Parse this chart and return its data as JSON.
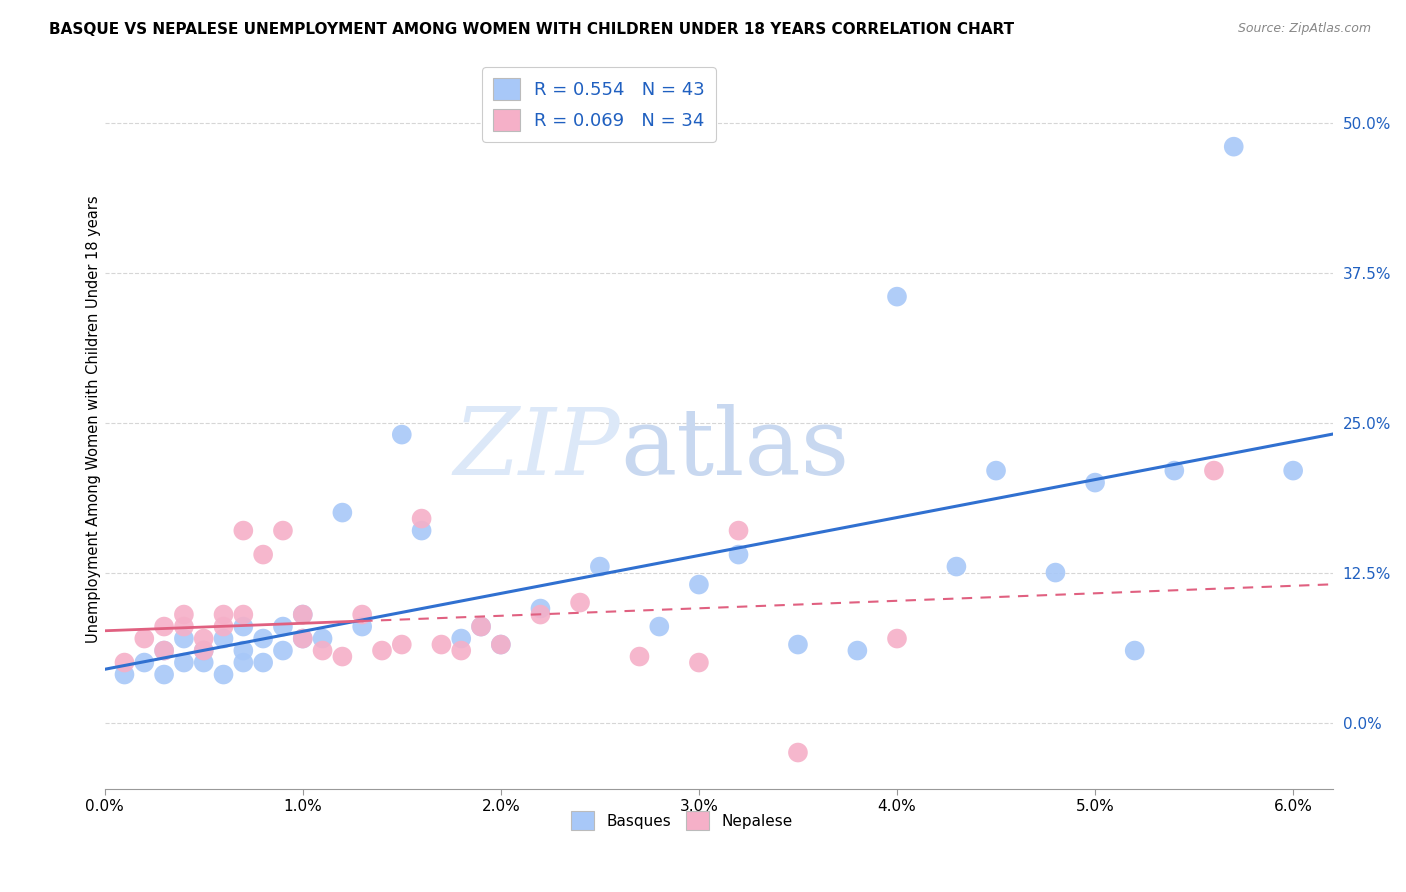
{
  "title": "BASQUE VS NEPALESE UNEMPLOYMENT AMONG WOMEN WITH CHILDREN UNDER 18 YEARS CORRELATION CHART",
  "source": "Source: ZipAtlas.com",
  "ylabel": "Unemployment Among Women with Children Under 18 years",
  "xlim": [
    0.0,
    0.062
  ],
  "ylim": [
    -0.055,
    0.56
  ],
  "xticks": [
    0.0,
    0.01,
    0.02,
    0.03,
    0.04,
    0.05,
    0.06
  ],
  "xticklabels": [
    "0.0%",
    "1.0%",
    "2.0%",
    "3.0%",
    "4.0%",
    "5.0%",
    "6.0%"
  ],
  "yticks": [
    0.0,
    0.125,
    0.25,
    0.375,
    0.5
  ],
  "yticklabels": [
    "0.0%",
    "12.5%",
    "25.0%",
    "37.5%",
    "50.0%"
  ],
  "basques_R": 0.554,
  "basques_N": 43,
  "nepalese_R": 0.069,
  "nepalese_N": 34,
  "blue_color": "#a8c8f8",
  "blue_line_color": "#3070d0",
  "pink_color": "#f5b0c8",
  "pink_line_color": "#e06080",
  "background_color": "#ffffff",
  "grid_color": "#cccccc",
  "basques_x": [
    0.001,
    0.002,
    0.003,
    0.003,
    0.004,
    0.004,
    0.005,
    0.005,
    0.006,
    0.006,
    0.007,
    0.007,
    0.007,
    0.008,
    0.008,
    0.009,
    0.009,
    0.01,
    0.01,
    0.011,
    0.012,
    0.013,
    0.015,
    0.016,
    0.018,
    0.019,
    0.02,
    0.022,
    0.025,
    0.028,
    0.03,
    0.032,
    0.035,
    0.038,
    0.04,
    0.043,
    0.045,
    0.048,
    0.05,
    0.052,
    0.054,
    0.057,
    0.06
  ],
  "basques_y": [
    0.04,
    0.05,
    0.04,
    0.06,
    0.05,
    0.07,
    0.05,
    0.06,
    0.07,
    0.04,
    0.05,
    0.06,
    0.08,
    0.07,
    0.05,
    0.08,
    0.06,
    0.07,
    0.09,
    0.07,
    0.175,
    0.08,
    0.24,
    0.16,
    0.07,
    0.08,
    0.065,
    0.095,
    0.13,
    0.08,
    0.115,
    0.14,
    0.065,
    0.06,
    0.355,
    0.13,
    0.21,
    0.125,
    0.2,
    0.06,
    0.21,
    0.48,
    0.21
  ],
  "nepalese_x": [
    0.001,
    0.002,
    0.003,
    0.003,
    0.004,
    0.004,
    0.005,
    0.005,
    0.006,
    0.006,
    0.007,
    0.007,
    0.008,
    0.009,
    0.01,
    0.01,
    0.011,
    0.012,
    0.013,
    0.014,
    0.015,
    0.016,
    0.017,
    0.018,
    0.019,
    0.02,
    0.022,
    0.024,
    0.027,
    0.03,
    0.032,
    0.035,
    0.04,
    0.056
  ],
  "nepalese_y": [
    0.05,
    0.07,
    0.06,
    0.08,
    0.09,
    0.08,
    0.07,
    0.06,
    0.09,
    0.08,
    0.16,
    0.09,
    0.14,
    0.16,
    0.09,
    0.07,
    0.06,
    0.055,
    0.09,
    0.06,
    0.065,
    0.17,
    0.065,
    0.06,
    0.08,
    0.065,
    0.09,
    0.1,
    0.055,
    0.05,
    0.16,
    -0.025,
    0.07,
    0.21
  ],
  "watermark_zip": "ZIP",
  "watermark_atlas": "atlas",
  "watermark_color_zip": "#dce8f8",
  "watermark_color_atlas": "#c8d8f0"
}
